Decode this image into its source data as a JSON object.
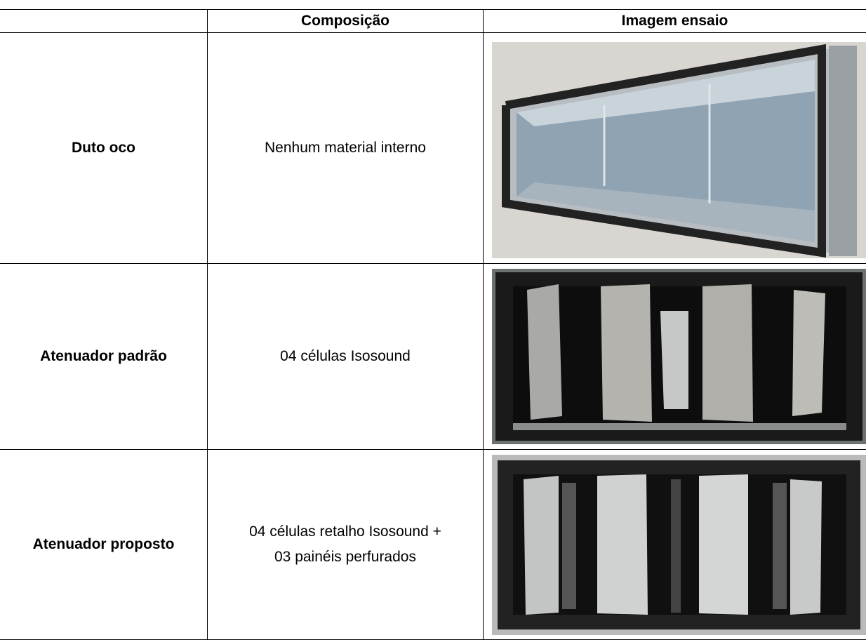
{
  "table": {
    "columns": [
      "Composição",
      "Imagem ensaio"
    ],
    "rows": [
      {
        "label": "Duto oco",
        "composition": [
          "Nenhum material interno"
        ]
      },
      {
        "label": "Atenuador padrão",
        "composition": [
          "04 células Isosound"
        ]
      },
      {
        "label": "Atenuador proposto",
        "composition": [
          "04 células retalho Isosound +",
          "03 painéis perfurados"
        ]
      }
    ]
  }
}
